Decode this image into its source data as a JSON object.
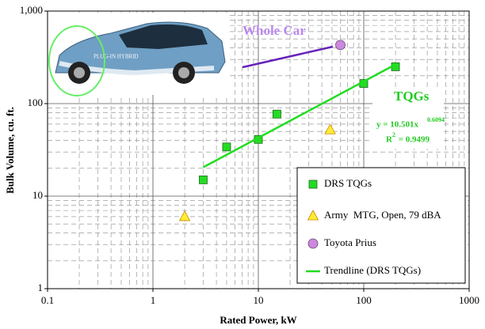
{
  "chart_data": {
    "type": "scatter",
    "x_label": "Rated Power, kW",
    "y_label": "Bulk Volume, cu. ft.",
    "log_x": true,
    "log_y": true,
    "grid": true,
    "xlim": [
      0.1,
      1000
    ],
    "xticks": [
      0.1,
      1,
      10,
      100,
      1000
    ],
    "ylim": [
      1,
      1000
    ],
    "yticks": [
      1,
      10,
      100,
      {
        "value": 1000,
        "label": "1,000"
      }
    ],
    "series": [
      {
        "name": "DRS TQGs",
        "color": "#22dd22",
        "marker": "square",
        "x": [
          3,
          5,
          10,
          15,
          100,
          200
        ],
        "values": [
          15,
          34,
          41,
          77,
          165,
          250
        ]
      },
      {
        "name": "Army  MTG, Open, 79 dBA",
        "color": "#ffee33",
        "marker": "triangle",
        "x": [
          2,
          48
        ],
        "values": [
          6,
          52
        ]
      },
      {
        "name": "Toyota Prius",
        "color": "#cc88dd",
        "marker": "circle",
        "x": [
          60
        ],
        "values": [
          430
        ]
      },
      {
        "name": "Trendline (DRS TQGs)",
        "color": "#22dd22",
        "marker": "line",
        "x": [
          3,
          200
        ],
        "values": [
          20.5,
          265
        ]
      }
    ],
    "annotations": {
      "whole_car": "Whole Car",
      "tqgs": "TQGs",
      "equation": {
        "text": "y = 10.501x",
        "exponent": "0.6094"
      },
      "r_squared": {
        "text": "R",
        "exponent": "2",
        "value": " = 0.9499"
      }
    }
  }
}
